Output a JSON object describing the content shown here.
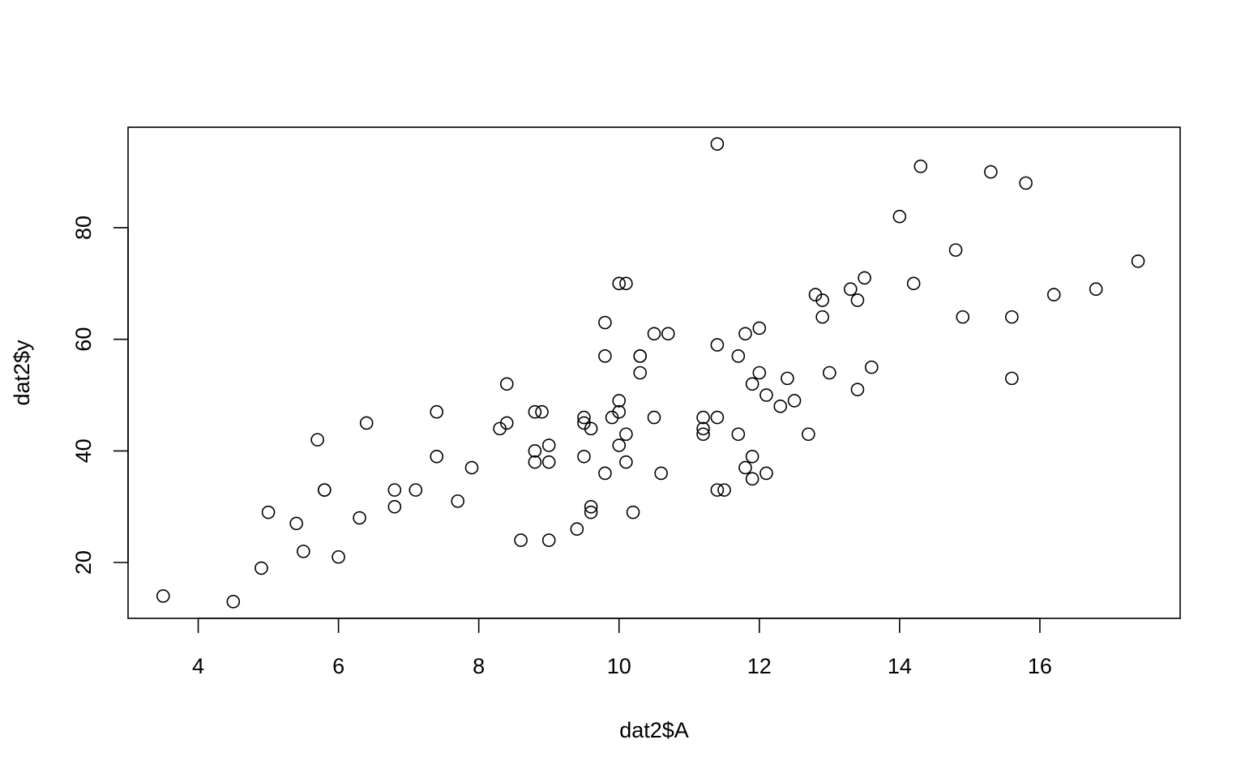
{
  "chart_data": {
    "type": "scatter",
    "title": "",
    "xlabel": "dat2$A",
    "ylabel": "dat2$y",
    "xlim": [
      3,
      18
    ],
    "ylim": [
      10,
      98
    ],
    "xticks": [
      4,
      6,
      8,
      10,
      12,
      14,
      16
    ],
    "yticks": [
      20,
      40,
      60,
      80
    ],
    "grid": false,
    "marker": "open-circle",
    "points": [
      [
        3.5,
        14
      ],
      [
        4.5,
        13
      ],
      [
        4.9,
        19
      ],
      [
        5.0,
        29
      ],
      [
        5.4,
        27
      ],
      [
        5.5,
        22
      ],
      [
        5.7,
        42
      ],
      [
        5.8,
        33
      ],
      [
        5.8,
        33
      ],
      [
        6.0,
        21
      ],
      [
        6.3,
        28
      ],
      [
        6.4,
        45
      ],
      [
        6.8,
        33
      ],
      [
        6.8,
        30
      ],
      [
        7.1,
        33
      ],
      [
        7.4,
        47
      ],
      [
        7.4,
        39
      ],
      [
        7.7,
        31
      ],
      [
        7.9,
        37
      ],
      [
        8.3,
        44
      ],
      [
        8.4,
        52
      ],
      [
        8.4,
        45
      ],
      [
        8.6,
        24
      ],
      [
        8.8,
        47
      ],
      [
        8.8,
        40
      ],
      [
        8.8,
        38
      ],
      [
        8.9,
        47
      ],
      [
        9.0,
        41
      ],
      [
        9.0,
        38
      ],
      [
        9.0,
        24
      ],
      [
        9.4,
        26
      ],
      [
        9.5,
        46
      ],
      [
        9.5,
        45
      ],
      [
        9.5,
        39
      ],
      [
        9.6,
        44
      ],
      [
        9.6,
        30
      ],
      [
        9.6,
        29
      ],
      [
        9.8,
        63
      ],
      [
        9.8,
        57
      ],
      [
        9.8,
        36
      ],
      [
        9.9,
        46
      ],
      [
        10.0,
        70
      ],
      [
        10.0,
        49
      ],
      [
        10.0,
        47
      ],
      [
        10.0,
        41
      ],
      [
        10.1,
        70
      ],
      [
        10.1,
        43
      ],
      [
        10.1,
        38
      ],
      [
        10.2,
        29
      ],
      [
        10.3,
        57
      ],
      [
        10.3,
        57
      ],
      [
        10.3,
        54
      ],
      [
        10.5,
        61
      ],
      [
        10.5,
        46
      ],
      [
        10.6,
        36
      ],
      [
        10.7,
        61
      ],
      [
        11.2,
        46
      ],
      [
        11.2,
        44
      ],
      [
        11.2,
        43
      ],
      [
        11.4,
        95
      ],
      [
        11.4,
        59
      ],
      [
        11.4,
        46
      ],
      [
        11.4,
        33
      ],
      [
        11.5,
        33
      ],
      [
        11.7,
        57
      ],
      [
        11.7,
        43
      ],
      [
        11.8,
        61
      ],
      [
        11.8,
        37
      ],
      [
        11.9,
        52
      ],
      [
        11.9,
        39
      ],
      [
        11.9,
        35
      ],
      [
        12.0,
        62
      ],
      [
        12.0,
        54
      ],
      [
        12.1,
        50
      ],
      [
        12.1,
        36
      ],
      [
        12.3,
        48
      ],
      [
        12.4,
        53
      ],
      [
        12.5,
        49
      ],
      [
        12.7,
        43
      ],
      [
        12.8,
        68
      ],
      [
        12.9,
        67
      ],
      [
        12.9,
        64
      ],
      [
        13.0,
        54
      ],
      [
        13.3,
        69
      ],
      [
        13.4,
        67
      ],
      [
        13.4,
        51
      ],
      [
        13.5,
        71
      ],
      [
        13.6,
        55
      ],
      [
        14.0,
        82
      ],
      [
        14.2,
        70
      ],
      [
        14.3,
        91
      ],
      [
        14.8,
        76
      ],
      [
        14.9,
        64
      ],
      [
        15.3,
        90
      ],
      [
        15.6,
        64
      ],
      [
        15.6,
        53
      ],
      [
        15.8,
        88
      ],
      [
        16.2,
        68
      ],
      [
        16.8,
        69
      ],
      [
        17.4,
        74
      ]
    ]
  }
}
